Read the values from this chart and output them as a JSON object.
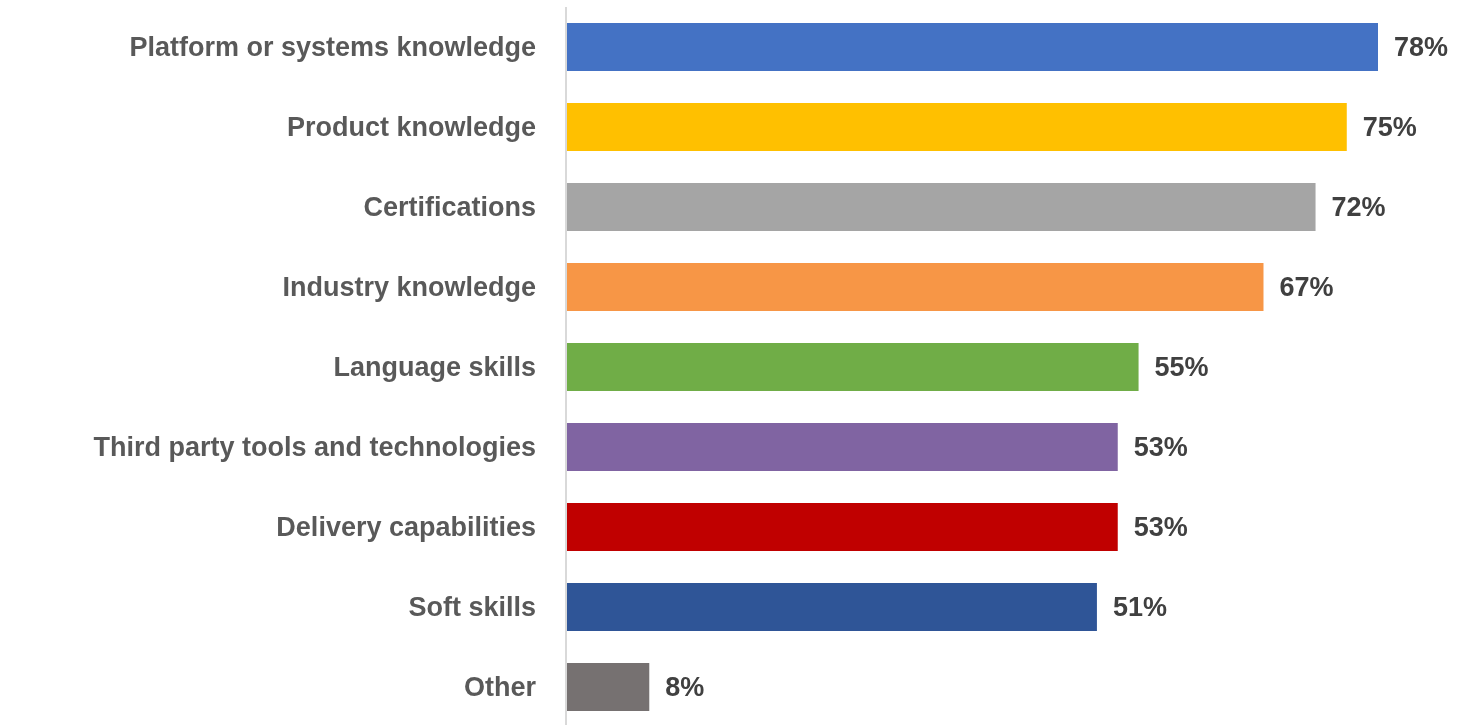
{
  "chart_data": {
    "type": "bar",
    "orientation": "horizontal",
    "categories": [
      "Platform or systems knowledge",
      "Product knowledge",
      "Certifications",
      "Industry knowledge",
      "Language skills",
      "Third party tools and technologies",
      "Delivery capabilities",
      "Soft skills",
      "Other"
    ],
    "values": [
      78,
      75,
      72,
      67,
      55,
      53,
      53,
      51,
      8
    ],
    "colors": [
      "#4472c4",
      "#ffc000",
      "#a5a5a5",
      "#f79646",
      "#70ad47",
      "#8064a2",
      "#c00000",
      "#2f5597",
      "#767171"
    ],
    "value_labels": [
      "78%",
      "75%",
      "72%",
      "67%",
      "55%",
      "53%",
      "53%",
      "51%",
      "8%"
    ]
  }
}
